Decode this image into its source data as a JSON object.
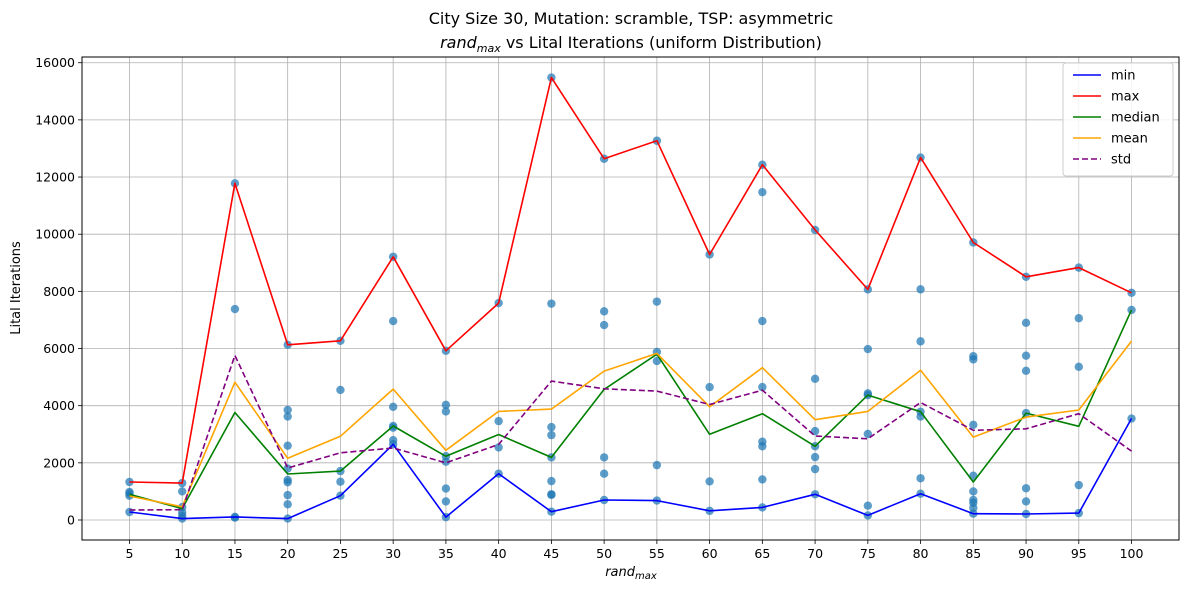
{
  "chart_data": {
    "type": "line",
    "title_line1": "City Size 30, Mutation: scramble, TSP: asymmetric",
    "title_line2_prefix": "rand",
    "title_line2_sub": "max",
    "title_line2_suffix": " vs Lital Iterations (uniform Distribution)",
    "xlabel_base": "rand",
    "xlabel_sub": "max",
    "ylabel": "Lital Iterations",
    "x": [
      5,
      10,
      15,
      20,
      25,
      30,
      35,
      40,
      45,
      50,
      55,
      60,
      65,
      70,
      75,
      80,
      85,
      90,
      95,
      100
    ],
    "xlim": [
      0.5,
      104.5
    ],
    "ylim": [
      -700,
      16200
    ],
    "yticks": [
      0,
      2000,
      4000,
      6000,
      8000,
      10000,
      12000,
      14000,
      16000
    ],
    "grid": true,
    "legend_position": "top-right",
    "series": [
      {
        "name": "min",
        "color": "#0000ff",
        "dashed": false,
        "values": [
          280,
          50,
          110,
          50,
          850,
          2650,
          100,
          1620,
          290,
          700,
          680,
          320,
          440,
          900,
          160,
          920,
          220,
          210,
          240,
          3550
        ]
      },
      {
        "name": "max",
        "color": "#ff0000",
        "dashed": false,
        "values": [
          1330,
          1290,
          11780,
          6130,
          6270,
          9210,
          5920,
          7590,
          15480,
          12640,
          13270,
          9290,
          12430,
          10150,
          8070,
          12680,
          9710,
          8510,
          8830,
          7950
        ]
      },
      {
        "name": "median",
        "color": "#008000",
        "dashed": false,
        "values": [
          900,
          400,
          3760,
          1610,
          1710,
          3290,
          2230,
          2990,
          2190,
          4570,
          5800,
          3000,
          3720,
          2580,
          4370,
          3790,
          1330,
          3740,
          3280,
          7350
        ]
      },
      {
        "name": "mean",
        "color": "#ffa500",
        "dashed": false,
        "values": [
          840,
          460,
          4820,
          2160,
          2930,
          4580,
          2440,
          3800,
          3880,
          5210,
          5830,
          3960,
          5330,
          3510,
          3800,
          5240,
          2900,
          3600,
          3850,
          6260
        ]
      },
      {
        "name": "std",
        "color": "#800080",
        "dashed": true,
        "values": [
          350,
          360,
          5760,
          1820,
          2350,
          2520,
          2000,
          2640,
          4860,
          4590,
          4510,
          4040,
          4540,
          2940,
          2840,
          4110,
          3140,
          3190,
          3720,
          2410
        ]
      }
    ],
    "scatter": {
      "color": "#1f77b4",
      "points": [
        [
          5,
          280
        ],
        [
          5,
          850
        ],
        [
          5,
          930
        ],
        [
          5,
          980
        ],
        [
          5,
          1330
        ],
        [
          10,
          50
        ],
        [
          10,
          150
        ],
        [
          10,
          270
        ],
        [
          10,
          450
        ],
        [
          10,
          1000
        ],
        [
          10,
          1290
        ],
        [
          15,
          80
        ],
        [
          15,
          110
        ],
        [
          15,
          7380
        ],
        [
          15,
          11780
        ],
        [
          20,
          50
        ],
        [
          20,
          550
        ],
        [
          20,
          870
        ],
        [
          20,
          1320
        ],
        [
          20,
          1400
        ],
        [
          20,
          1800
        ],
        [
          20,
          2600
        ],
        [
          20,
          3620
        ],
        [
          20,
          3850
        ],
        [
          20,
          6130
        ],
        [
          25,
          850
        ],
        [
          25,
          1340
        ],
        [
          25,
          1710
        ],
        [
          25,
          4550
        ],
        [
          25,
          6270
        ],
        [
          30,
          2650
        ],
        [
          30,
          2790
        ],
        [
          30,
          3230
        ],
        [
          30,
          3290
        ],
        [
          30,
          3960
        ],
        [
          30,
          6960
        ],
        [
          30,
          9210
        ],
        [
          35,
          100
        ],
        [
          35,
          650
        ],
        [
          35,
          1100
        ],
        [
          35,
          2040
        ],
        [
          35,
          2230
        ],
        [
          35,
          3800
        ],
        [
          35,
          4030
        ],
        [
          35,
          5920
        ],
        [
          40,
          1620
        ],
        [
          40,
          2540
        ],
        [
          40,
          3460
        ],
        [
          40,
          7590
        ],
        [
          45,
          290
        ],
        [
          45,
          880
        ],
        [
          45,
          900
        ],
        [
          45,
          1360
        ],
        [
          45,
          2190
        ],
        [
          45,
          2970
        ],
        [
          45,
          3250
        ],
        [
          45,
          7570
        ],
        [
          45,
          15480
        ],
        [
          50,
          700
        ],
        [
          50,
          1620
        ],
        [
          50,
          2190
        ],
        [
          50,
          6820
        ],
        [
          50,
          7300
        ],
        [
          50,
          12640
        ],
        [
          55,
          680
        ],
        [
          55,
          1920
        ],
        [
          55,
          5560
        ],
        [
          55,
          5880
        ],
        [
          55,
          7640
        ],
        [
          55,
          13270
        ],
        [
          60,
          320
        ],
        [
          60,
          1350
        ],
        [
          60,
          4650
        ],
        [
          60,
          9290
        ],
        [
          65,
          440
        ],
        [
          65,
          1420
        ],
        [
          65,
          2580
        ],
        [
          65,
          2740
        ],
        [
          65,
          4650
        ],
        [
          65,
          6960
        ],
        [
          65,
          11470
        ],
        [
          65,
          12430
        ],
        [
          70,
          900
        ],
        [
          70,
          1780
        ],
        [
          70,
          2200
        ],
        [
          70,
          2580
        ],
        [
          70,
          3110
        ],
        [
          70,
          4940
        ],
        [
          70,
          10150
        ],
        [
          75,
          160
        ],
        [
          75,
          500
        ],
        [
          75,
          3010
        ],
        [
          75,
          4370
        ],
        [
          75,
          4430
        ],
        [
          75,
          5980
        ],
        [
          75,
          8070
        ],
        [
          80,
          920
        ],
        [
          80,
          1460
        ],
        [
          80,
          3620
        ],
        [
          80,
          3790
        ],
        [
          80,
          6250
        ],
        [
          80,
          8070
        ],
        [
          80,
          12680
        ],
        [
          85,
          220
        ],
        [
          85,
          420
        ],
        [
          85,
          600
        ],
        [
          85,
          700
        ],
        [
          85,
          1000
        ],
        [
          85,
          1550
        ],
        [
          85,
          3330
        ],
        [
          85,
          5620
        ],
        [
          85,
          5730
        ],
        [
          85,
          9710
        ],
        [
          90,
          210
        ],
        [
          90,
          650
        ],
        [
          90,
          1110
        ],
        [
          90,
          3740
        ],
        [
          90,
          5220
        ],
        [
          90,
          5750
        ],
        [
          90,
          6900
        ],
        [
          90,
          8510
        ],
        [
          95,
          240
        ],
        [
          95,
          1220
        ],
        [
          95,
          5360
        ],
        [
          95,
          7060
        ],
        [
          95,
          8830
        ],
        [
          100,
          3550
        ],
        [
          100,
          7350
        ],
        [
          100,
          7950
        ]
      ]
    }
  }
}
